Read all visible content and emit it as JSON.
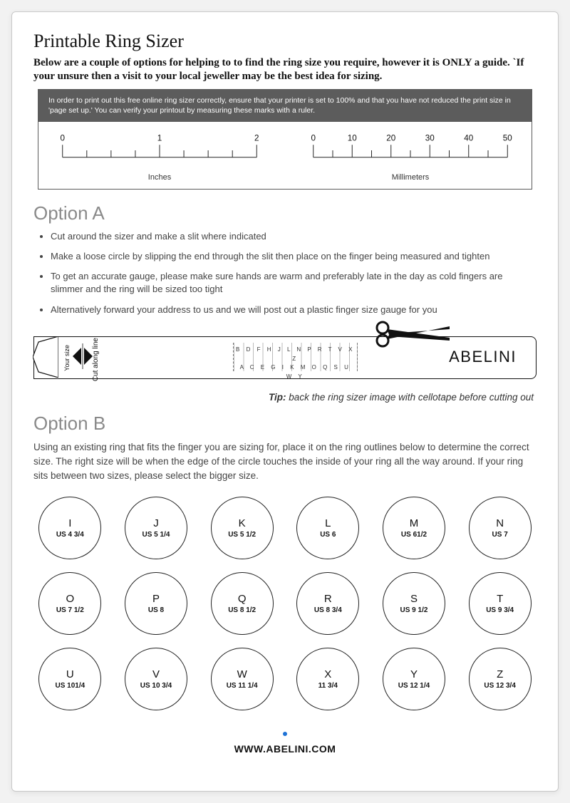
{
  "title": "Printable Ring Sizer",
  "intro": "Below are a couple of options for helping to to find  the ring size you require, however it is ONLY a guide. `If your unsure then a visit to your local jeweller may be the best idea for sizing.",
  "ruler": {
    "note": "In order to print out this free online ring sizer correctly, ensure that your printer is set to 100% and that you have not reduced the print size in 'page set up.' You can verify your printout by measuring these marks with a ruler.",
    "inches": {
      "label": "Inches",
      "ticks": [
        "0",
        "1",
        "2"
      ],
      "range": [
        0,
        2
      ],
      "minor_per_major": 4,
      "line_color": "#222"
    },
    "mm": {
      "label": "Millimeters",
      "ticks": [
        "0",
        "10",
        "20",
        "30",
        "40",
        "50"
      ],
      "range": [
        0,
        50
      ],
      "minor_per_major": 2,
      "line_color": "#222"
    }
  },
  "optionA": {
    "heading": "Option A",
    "steps": [
      "Cut around the sizer and make a slit where indicated",
      "Make a loose circle by slipping the end through the slit then place on the finger being measured and tighten",
      "To get an accurate gauge, please make sure hands are warm and preferably late in the day\nas cold fingers are slimmer and the ring will be sized too tight",
      "Alternatively forward your address to us and we will post out a plastic finger size gauge for you"
    ],
    "strip": {
      "your_size": "Your size",
      "cut_line": "Cut along line",
      "gauge_top": "B D F H J L N P R T V X Z",
      "gauge_bot": "A C E G I K M O Q S U W Y",
      "brand": "ABELINI"
    },
    "tip_label": "Tip:",
    "tip_text": " back the ring sizer image with cellotape before cutting out"
  },
  "optionB": {
    "heading": "Option B",
    "text": "Using an existing ring that fits the finger you are sizing for, place it on the ring outlines below to determine the correct size. The right size will be when the edge of the circle touches the inside of your ring all the way around. If your ring sits between two sizes, please select the bigger size.",
    "sizes": [
      {
        "letter": "I",
        "us": "US 4 3/4"
      },
      {
        "letter": "J",
        "us": "US 5 1/4"
      },
      {
        "letter": "K",
        "us": "US 5 1/2"
      },
      {
        "letter": "L",
        "us": "US  6"
      },
      {
        "letter": "M",
        "us": "US 61/2"
      },
      {
        "letter": "N",
        "us": "US 7"
      },
      {
        "letter": "O",
        "us": "US 7 1/2"
      },
      {
        "letter": "P",
        "us": "US 8"
      },
      {
        "letter": "Q",
        "us": "US 8 1/2"
      },
      {
        "letter": "R",
        "us": "US 8 3/4"
      },
      {
        "letter": "S",
        "us": "US 9 1/2"
      },
      {
        "letter": "T",
        "us": "US 9 3/4"
      },
      {
        "letter": "U",
        "us": "US 101/4"
      },
      {
        "letter": "V",
        "us": "US 10 3/4"
      },
      {
        "letter": "W",
        "us": "US 11 1/4"
      },
      {
        "letter": "X",
        "us": "11 3/4"
      },
      {
        "letter": "Y",
        "us": "US 12 1/4"
      },
      {
        "letter": "Z",
        "us": "US 12 3/4"
      }
    ]
  },
  "footer": {
    "url": "WWW.ABELINI.COM",
    "dot_color": "#1e72d6"
  },
  "colors": {
    "page_bg": "#ffffff",
    "outer_bg": "#f2f2f2",
    "ruler_banner": "#5c5c5c",
    "text": "#222",
    "option_heading": "#8a8a8a",
    "border": "#c9c9c9"
  }
}
